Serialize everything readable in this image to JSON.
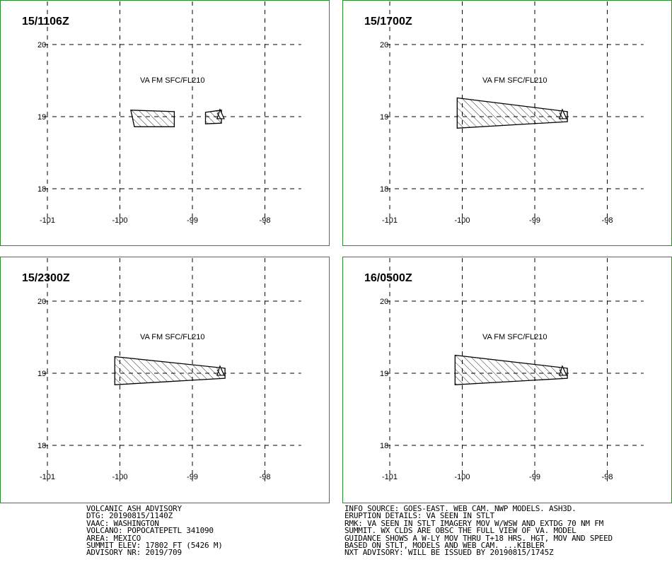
{
  "colors": {
    "panel_border": "#2b8a2b",
    "lines": "#000000",
    "background": "#ffffff"
  },
  "map": {
    "lat_ticks": [
      20,
      19,
      18
    ],
    "lon_ticks": [
      -101,
      -100,
      -99,
      -98
    ],
    "lat_labels": [
      "20",
      "19",
      "18"
    ],
    "lon_labels": [
      "-101",
      "-100",
      "-99",
      "-98"
    ],
    "volcano_marker": "triangle-icon",
    "volcano_position": {
      "lon": -98.62,
      "lat": 19.02
    }
  },
  "panels": [
    {
      "title": "15/1106Z",
      "label": "VA FM SFC/FL210",
      "polygons": [
        [
          [
            -99.85,
            19.09
          ],
          [
            -99.25,
            19.07
          ],
          [
            -99.25,
            18.86
          ],
          [
            -99.8,
            18.86
          ]
        ],
        [
          [
            -98.82,
            19.06
          ],
          [
            -98.6,
            19.09
          ],
          [
            -98.6,
            18.91
          ],
          [
            -98.82,
            18.9
          ]
        ]
      ]
    },
    {
      "title": "15/1700Z",
      "label": "VA FM SFC/FL210",
      "polygons": [
        [
          [
            -100.07,
            19.26
          ],
          [
            -98.55,
            19.07
          ],
          [
            -98.55,
            18.93
          ],
          [
            -100.07,
            18.84
          ]
        ]
      ]
    },
    {
      "title": "15/2300Z",
      "label": "VA FM SFC/FL210",
      "polygons": [
        [
          [
            -100.07,
            19.23
          ],
          [
            -98.55,
            19.07
          ],
          [
            -98.55,
            18.93
          ],
          [
            -100.07,
            18.84
          ]
        ]
      ]
    },
    {
      "title": "16/0500Z",
      "label": "VA FM SFC/FL210",
      "polygons": [
        [
          [
            -100.1,
            19.25
          ],
          [
            -98.55,
            19.07
          ],
          [
            -98.55,
            18.93
          ],
          [
            -100.1,
            18.84
          ]
        ]
      ]
    }
  ],
  "advisory": {
    "left_lines": [
      "VOLCANIC ASH ADVISORY",
      "DTG: 20190815/1140Z",
      "VAAC: WASHINGTON",
      "VOLCANO: POPOCATEPETL 341090",
      "AREA: MEXICO",
      "SUMMIT ELEV: 17802 FT (5426 M)",
      "ADVISORY NR: 2019/709"
    ],
    "right_lines": [
      "INFO SOURCE: GOES-EAST. WEB CAM. NWP MODELS. ASH3D.",
      "ERUPTION DETAILS: VA SEEN IN STLT",
      "RMK: VA SEEN IN STLT IMAGERY MOV W/WSW AND EXTDG 70 NM FM",
      "SUMMIT. WX CLDS ARE OBSC THE FULL VIEW OF VA. MODEL",
      "GUIDANCE SHOWS A W-LY MOV THRU T+18 HRS. HGT, MOV AND SPEED",
      "BASED ON STLT, MODELS AND WEB CAM. ...KIBLER",
      "NXT ADVISORY: WILL BE ISSUED BY 20190815/1745Z"
    ]
  }
}
